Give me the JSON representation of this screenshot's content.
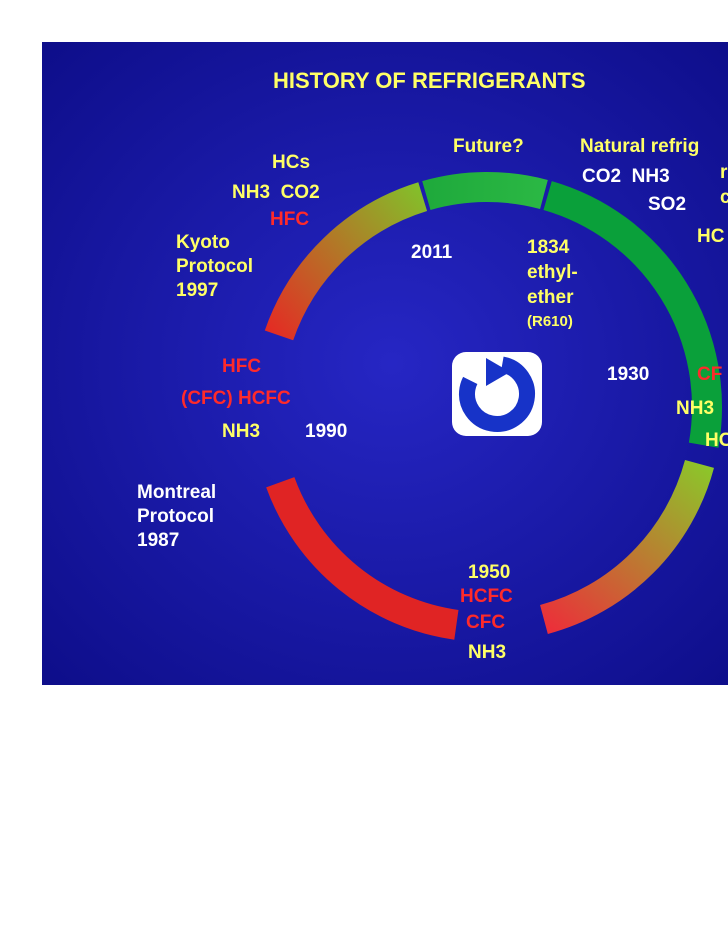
{
  "title": "HISTORY OF REFRIGERANTS",
  "labels": [
    "Future?",
    "Natural refrig",
    "CO2  NH3",
    "r",
    "c",
    "SO2",
    "HC",
    "HCs",
    "NH3  CO2",
    "HFC",
    "Kyoto",
    "Protocol",
    "1997",
    "2011",
    "1834",
    "ethyl-",
    "ether",
    "(R610)",
    "HFC",
    "(CFC) HCFC",
    "NH3",
    "1990",
    "1930",
    "CF",
    "NH3",
    "HC",
    "Montreal",
    "Protocol",
    "1987",
    "1950",
    "HCFC",
    "CFC",
    "NH3"
  ]
}
